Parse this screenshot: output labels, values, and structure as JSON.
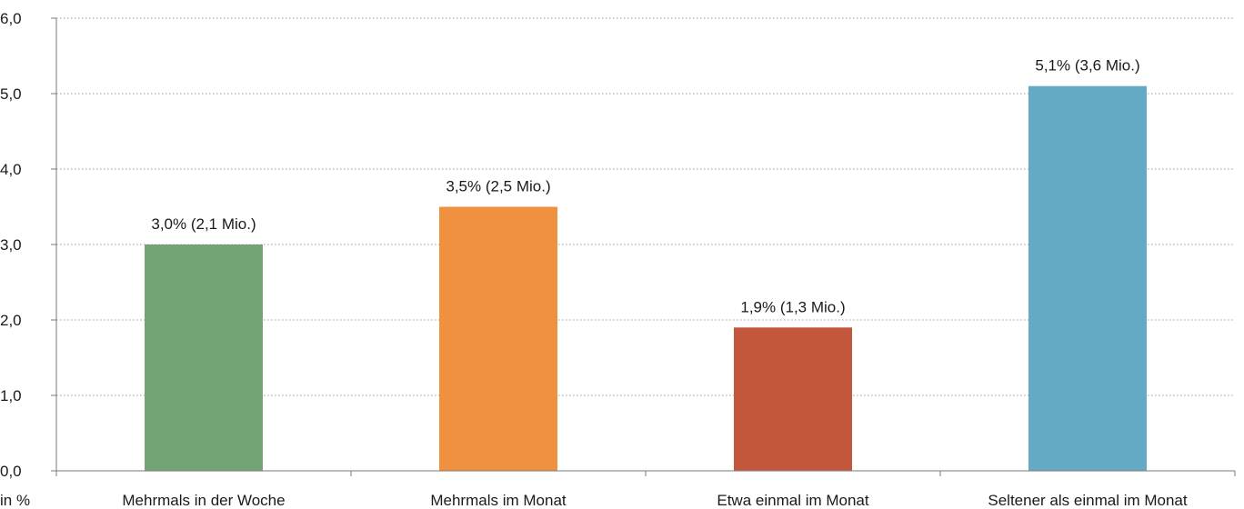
{
  "chart_data": {
    "type": "bar",
    "categories": [
      "Mehrmals in der Woche",
      "Mehrmals im Monat",
      "Etwa einmal im Monat",
      "Seltener als einmal im Monat"
    ],
    "values": [
      3.0,
      3.5,
      1.9,
      5.1
    ],
    "data_labels": [
      "3,0% (2,1 Mio.)",
      "3,5% (2,5 Mio.)",
      "1,9% (1,3 Mio.)",
      "5,1% (3,6 Mio.)"
    ],
    "colors": [
      "#73a476",
      "#f0913f",
      "#c3573b",
      "#64aac5"
    ],
    "ylim": [
      0,
      6
    ],
    "y_ticks": [
      0,
      1,
      2,
      3,
      4,
      5,
      6
    ],
    "y_tick_labels": [
      "0,0",
      "1,0",
      "2,0",
      "3,0",
      "4,0",
      "5,0",
      "6,0"
    ],
    "ylabel": "in %",
    "grid": true,
    "grid_style": "dotted",
    "legend": "none"
  }
}
